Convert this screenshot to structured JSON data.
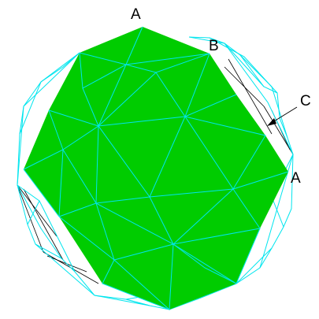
{
  "labels": {
    "top_vertex": "A",
    "upper_right_vertex": "B",
    "callout": "C",
    "right_vertex": "A"
  },
  "colors": {
    "face_fill": "#00cc00",
    "wireframe": "#00e5ee",
    "hidden_edges": "#000000",
    "background": "#ffffff",
    "text": "#000000"
  }
}
